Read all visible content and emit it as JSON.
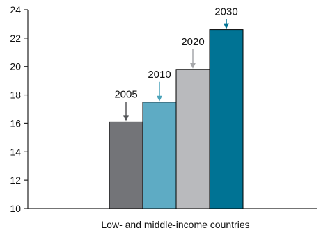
{
  "chart_data": {
    "type": "bar",
    "title": "",
    "xlabel": "Low- and middle-income countries",
    "ylabel": "",
    "ylim": [
      10,
      24
    ],
    "yticks": [
      10,
      12,
      14,
      16,
      18,
      20,
      22,
      24
    ],
    "grid": false,
    "legend": "none",
    "categories": [
      "2005",
      "2010",
      "2020",
      "2030"
    ],
    "values": [
      16.1,
      17.5,
      19.8,
      22.6
    ],
    "colors": [
      "#737478",
      "#5eabc4",
      "#b9babd",
      "#007394"
    ],
    "arrow_colors": [
      "#555659",
      "#4aa3ba",
      "#a6a7aa",
      "#007394"
    ]
  }
}
